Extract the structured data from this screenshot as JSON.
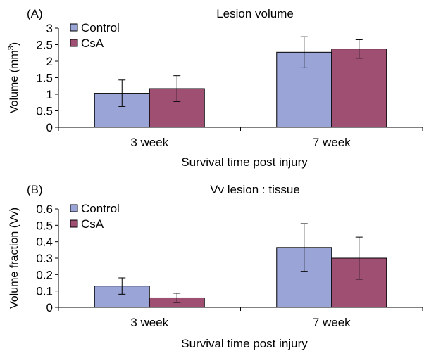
{
  "colors": {
    "control": "#9aa4d6",
    "csa": "#9e4f72"
  },
  "chart_data": [
    {
      "panel": "(A)",
      "type": "bar",
      "title": "Lesion volume",
      "xlabel": "Survival time post injury",
      "ylabel_main": "Volume (mm",
      "ylabel_sup": "3",
      "ylabel_end": ")",
      "ylim": [
        0,
        3
      ],
      "yticks": [
        "0",
        "0.5",
        "1",
        "1.5",
        "2",
        "2.5",
        "3"
      ],
      "ytick_values": [
        0,
        0.5,
        1,
        1.5,
        2,
        2.5,
        3
      ],
      "categories": [
        "3 week",
        "7 week"
      ],
      "series": [
        {
          "name": "Control",
          "color": "#9aa4d6",
          "values": [
            1.03,
            2.27
          ],
          "errors": [
            0.4,
            0.47
          ]
        },
        {
          "name": "CsA",
          "color": "#9e4f72",
          "values": [
            1.17,
            2.37
          ],
          "errors": [
            0.39,
            0.28
          ]
        }
      ],
      "legend": "top-left"
    },
    {
      "panel": "(B)",
      "type": "bar",
      "title": "Vv lesion : tissue",
      "xlabel": "Survival time post injury",
      "ylabel_main": "Volume fraction (Vv)",
      "ylabel_sup": "",
      "ylabel_end": "",
      "ylim": [
        0,
        0.6
      ],
      "yticks": [
        "0",
        "0.1",
        "0.2",
        "0.3",
        "0.4",
        "0.5",
        "0.6"
      ],
      "ytick_values": [
        0,
        0.1,
        0.2,
        0.3,
        0.4,
        0.5,
        0.6
      ],
      "categories": [
        "3 week",
        "7 week"
      ],
      "series": [
        {
          "name": "Control",
          "color": "#9aa4d6",
          "values": [
            0.13,
            0.365
          ],
          "errors": [
            0.05,
            0.145
          ]
        },
        {
          "name": "CsA",
          "color": "#9e4f72",
          "values": [
            0.058,
            0.3
          ],
          "errors": [
            0.028,
            0.128
          ]
        }
      ],
      "legend": "top-left"
    }
  ]
}
